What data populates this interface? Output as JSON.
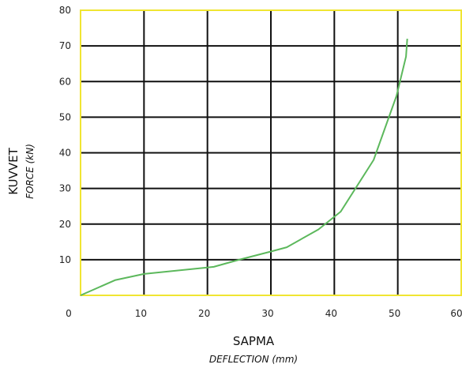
{
  "chart_data": {
    "type": "line",
    "xlabel": "SAPMA",
    "xlabel_sub": "DEFLECTION (mm)",
    "ylabel": "KUVVET",
    "ylabel_sub": "FORCE (kN)",
    "xlim": [
      0,
      60
    ],
    "ylim": [
      0,
      80
    ],
    "x_ticks": [
      0,
      10,
      20,
      30,
      40,
      50,
      60
    ],
    "y_ticks": [
      10,
      20,
      30,
      40,
      50,
      60,
      70,
      80
    ],
    "x_tick_labels": [
      "0",
      "10",
      "20",
      "30",
      "40",
      "50",
      "60"
    ],
    "y_tick_labels": [
      "10",
      "20",
      "30",
      "40",
      "50",
      "60",
      "70",
      "80"
    ],
    "grid": true,
    "series": [
      {
        "color": "#5cb85c",
        "x": [
          0,
          5.5,
          10,
          21,
          25,
          30,
          32.5,
          37.5,
          41,
          46.2,
          49.8,
          51.3,
          51.5
        ],
        "y": [
          0,
          4.3,
          6,
          8,
          10,
          12.3,
          13.5,
          18.5,
          23.5,
          38,
          56,
          67,
          72
        ]
      }
    ],
    "colors": {
      "plot_frame": "#f0e532",
      "grid": "#111111",
      "line": "#5cb85c"
    }
  }
}
